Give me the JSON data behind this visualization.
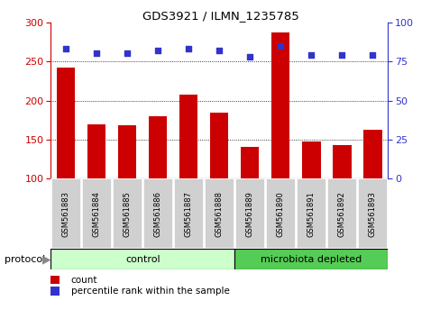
{
  "title": "GDS3921 / ILMN_1235785",
  "categories": [
    "GSM561883",
    "GSM561884",
    "GSM561885",
    "GSM561886",
    "GSM561887",
    "GSM561888",
    "GSM561889",
    "GSM561890",
    "GSM561891",
    "GSM561892",
    "GSM561893"
  ],
  "bar_values": [
    242,
    170,
    168,
    180,
    207,
    185,
    141,
    287,
    147,
    143,
    162
  ],
  "dot_values": [
    83,
    80,
    80,
    82,
    83,
    82,
    78,
    85,
    79,
    79,
    79
  ],
  "bar_color": "#cc0000",
  "dot_color": "#3333cc",
  "ylim_left": [
    100,
    300
  ],
  "ylim_right": [
    0,
    100
  ],
  "yticks_left": [
    100,
    150,
    200,
    250,
    300
  ],
  "yticks_right": [
    0,
    25,
    50,
    75,
    100
  ],
  "grid_values": [
    150,
    200,
    250
  ],
  "control_label": "control",
  "microbiota_label": "microbiota depleted",
  "protocol_label": "protocol",
  "legend_bar": "count",
  "legend_dot": "percentile rank within the sample",
  "n_control": 6,
  "n_microbiota": 5,
  "control_color": "#ccffcc",
  "microbiota_color": "#55cc55",
  "xlabel_area_color": "#d0d0d0",
  "plot_bg": "#ffffff"
}
